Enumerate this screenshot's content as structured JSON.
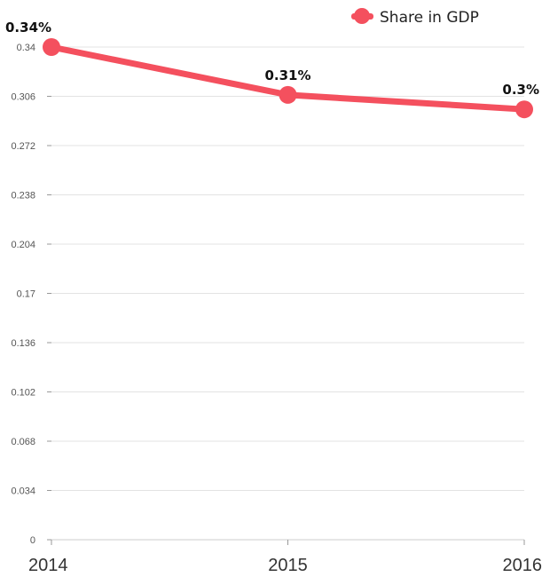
{
  "chart_data": {
    "type": "line",
    "categories": [
      "2014",
      "2015",
      "2016"
    ],
    "series": [
      {
        "name": "Share in GDP",
        "values": [
          0.34,
          0.307,
          0.297
        ],
        "labels": [
          "0.34%",
          "0.31%",
          "0.3%"
        ],
        "color": "#f4505e"
      }
    ],
    "y_ticks": [
      "0",
      "0.034",
      "0.068",
      "0.102",
      "0.136",
      "0.17",
      "0.204",
      "0.238",
      "0.272",
      "0.306",
      "0.34"
    ],
    "ylim": [
      0,
      0.34
    ],
    "grid": true,
    "legend_position": "top-right"
  }
}
